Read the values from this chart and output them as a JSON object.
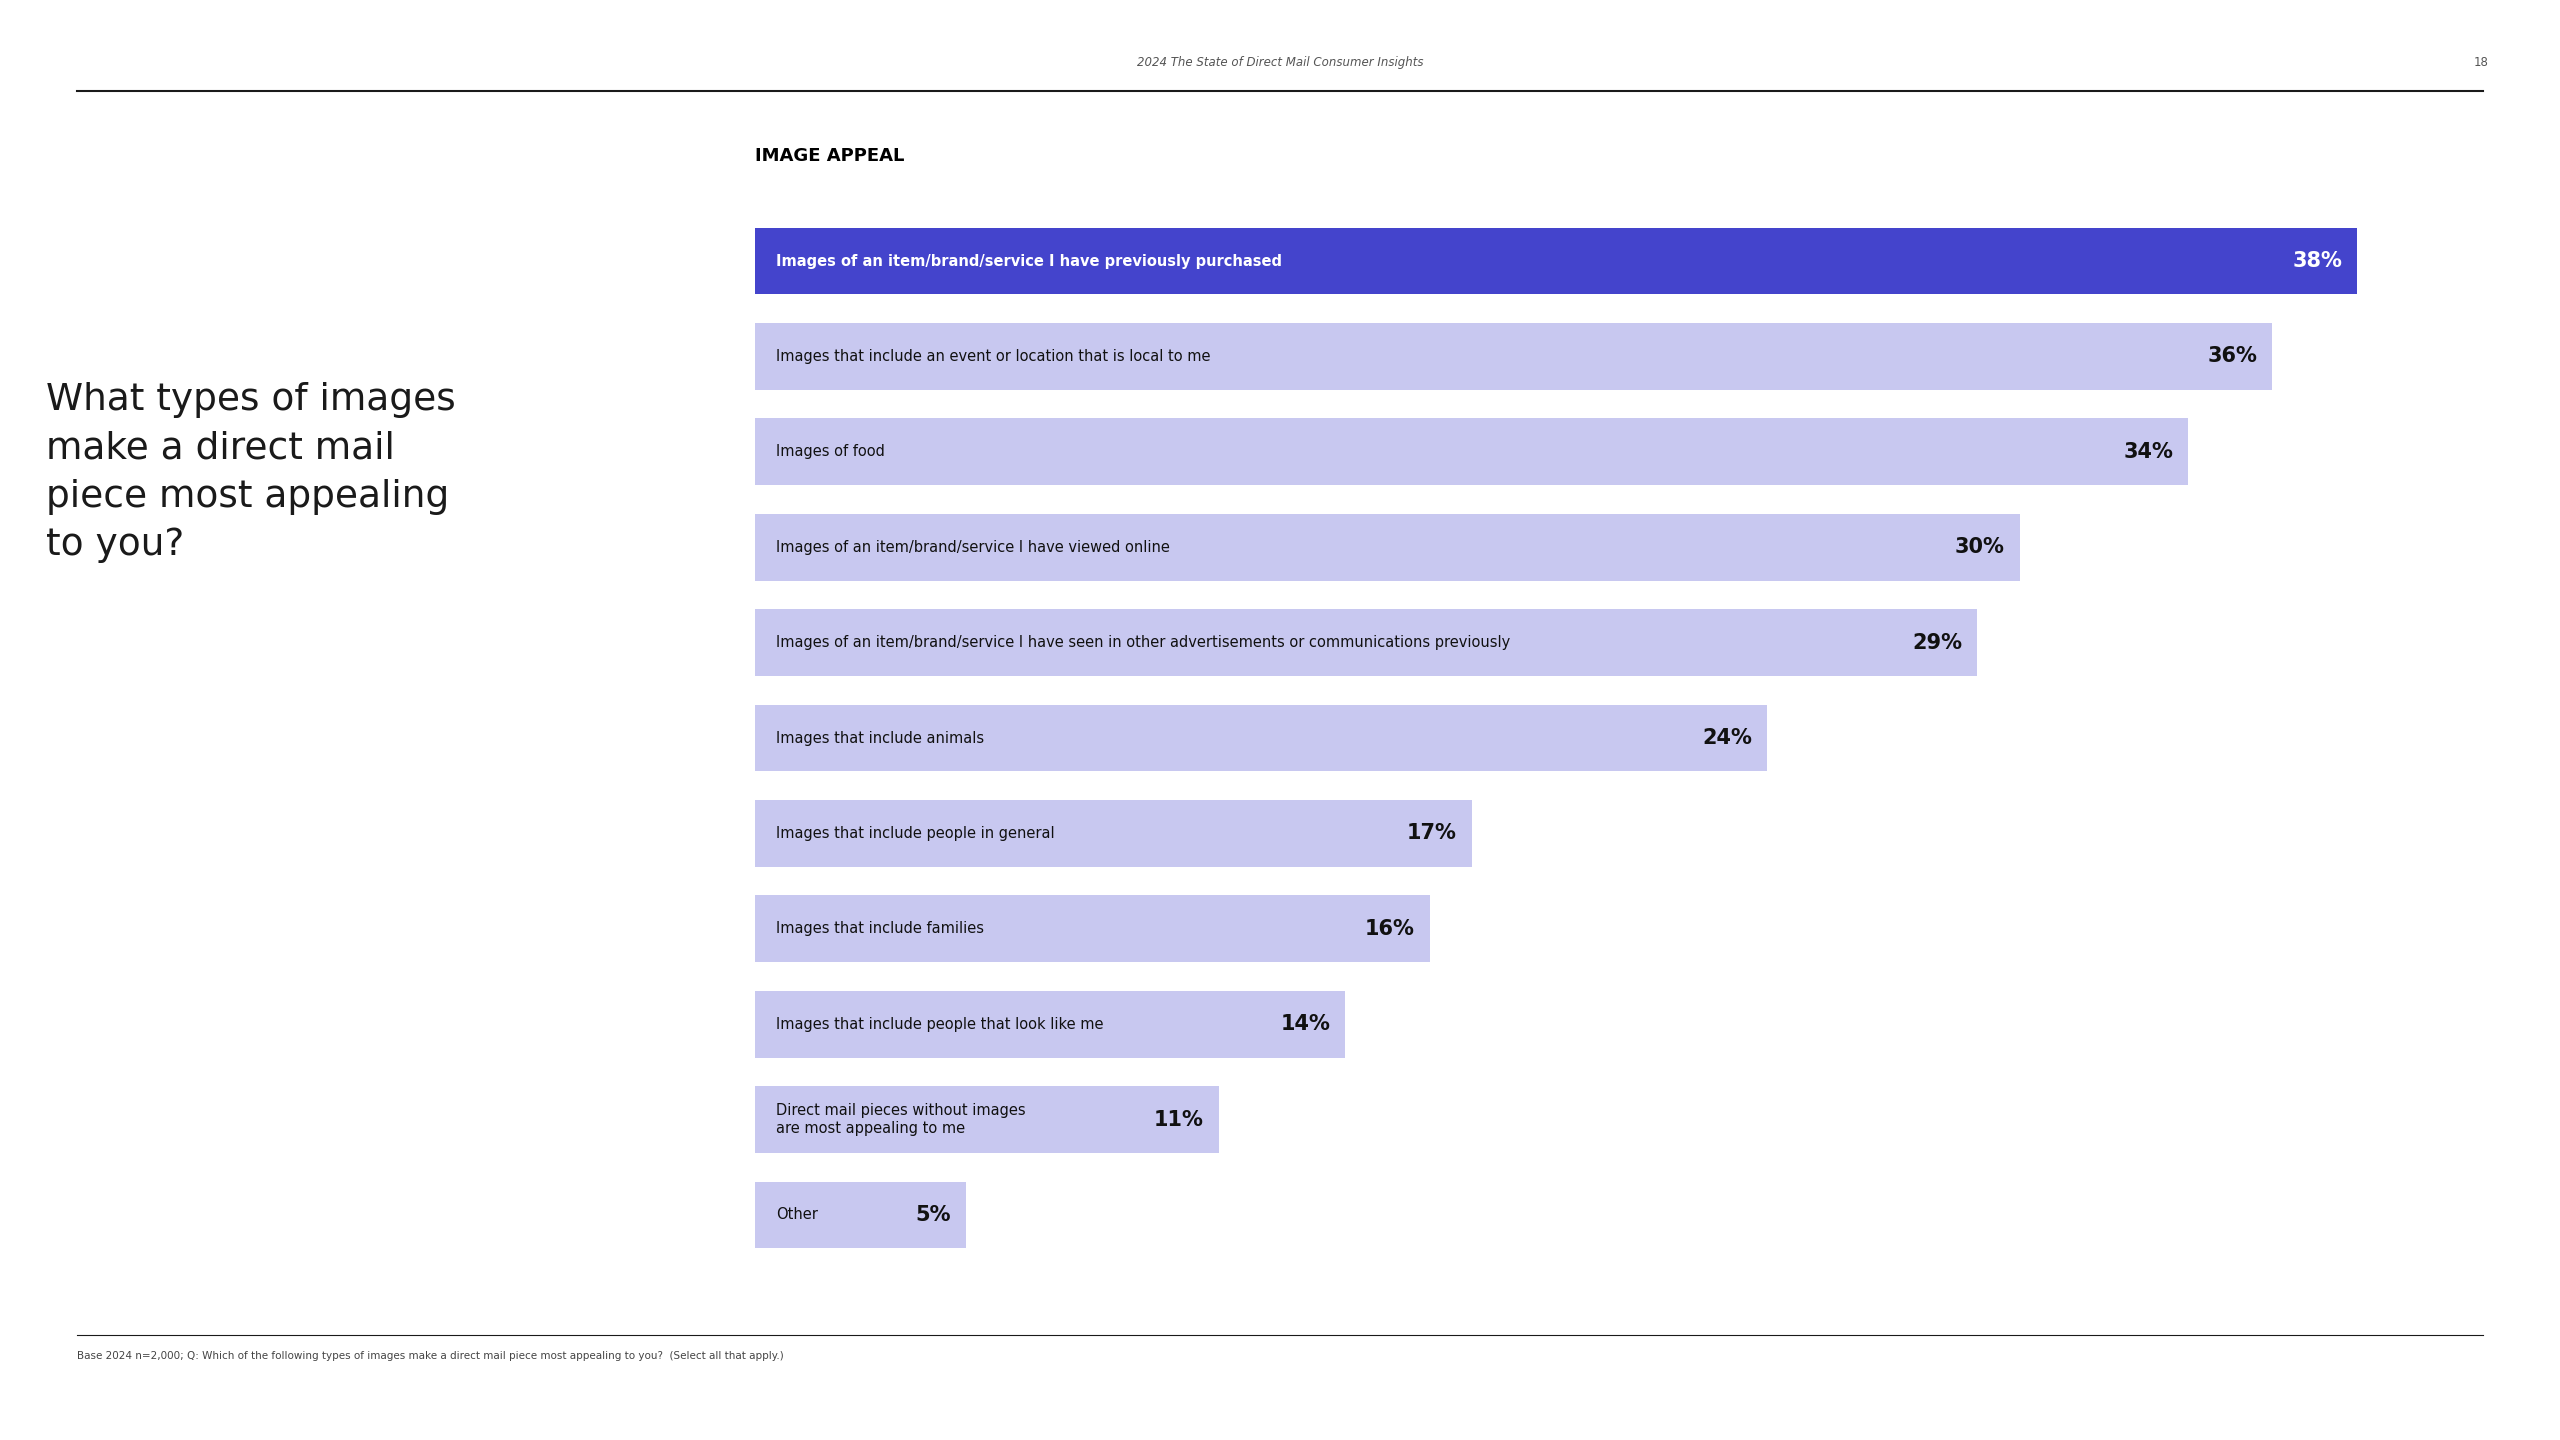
{
  "title": "IMAGE APPEAL",
  "left_question": "What types of images\nmake a direct mail\npiece most appealing\nto you?",
  "header_text": "2024 The State of Direct Mail Consumer Insights",
  "page_number": "18",
  "footer_text": "Base 2024 n=2,000; Q: Which of the following types of images make a direct mail piece most appealing to you?  (Select all that apply.)",
  "categories": [
    "Images of an item/brand/service I have previously purchased",
    "Images that include an event or location that is local to me",
    "Images of food",
    "Images of an item/brand/service I have viewed online",
    "Images of an item/brand/service I have seen in other advertisements or communications previously",
    "Images that include animals",
    "Images that include people in general",
    "Images that include families",
    "Images that include people that look like me",
    "Direct mail pieces without images\nare most appealing to me",
    "Other"
  ],
  "values": [
    38,
    36,
    34,
    30,
    29,
    24,
    17,
    16,
    14,
    11,
    5
  ],
  "bar_color_first": "#4444cc",
  "bar_color_rest": "#c8c8f0",
  "label_color_first": "#ffffff",
  "label_color_rest": "#111111",
  "value_color_first": "#ffffff",
  "value_color_rest": "#111111",
  "bg_color": "#ffffff",
  "title_color": "#000000",
  "question_color": "#1a1a1a",
  "bar_height": 0.7
}
